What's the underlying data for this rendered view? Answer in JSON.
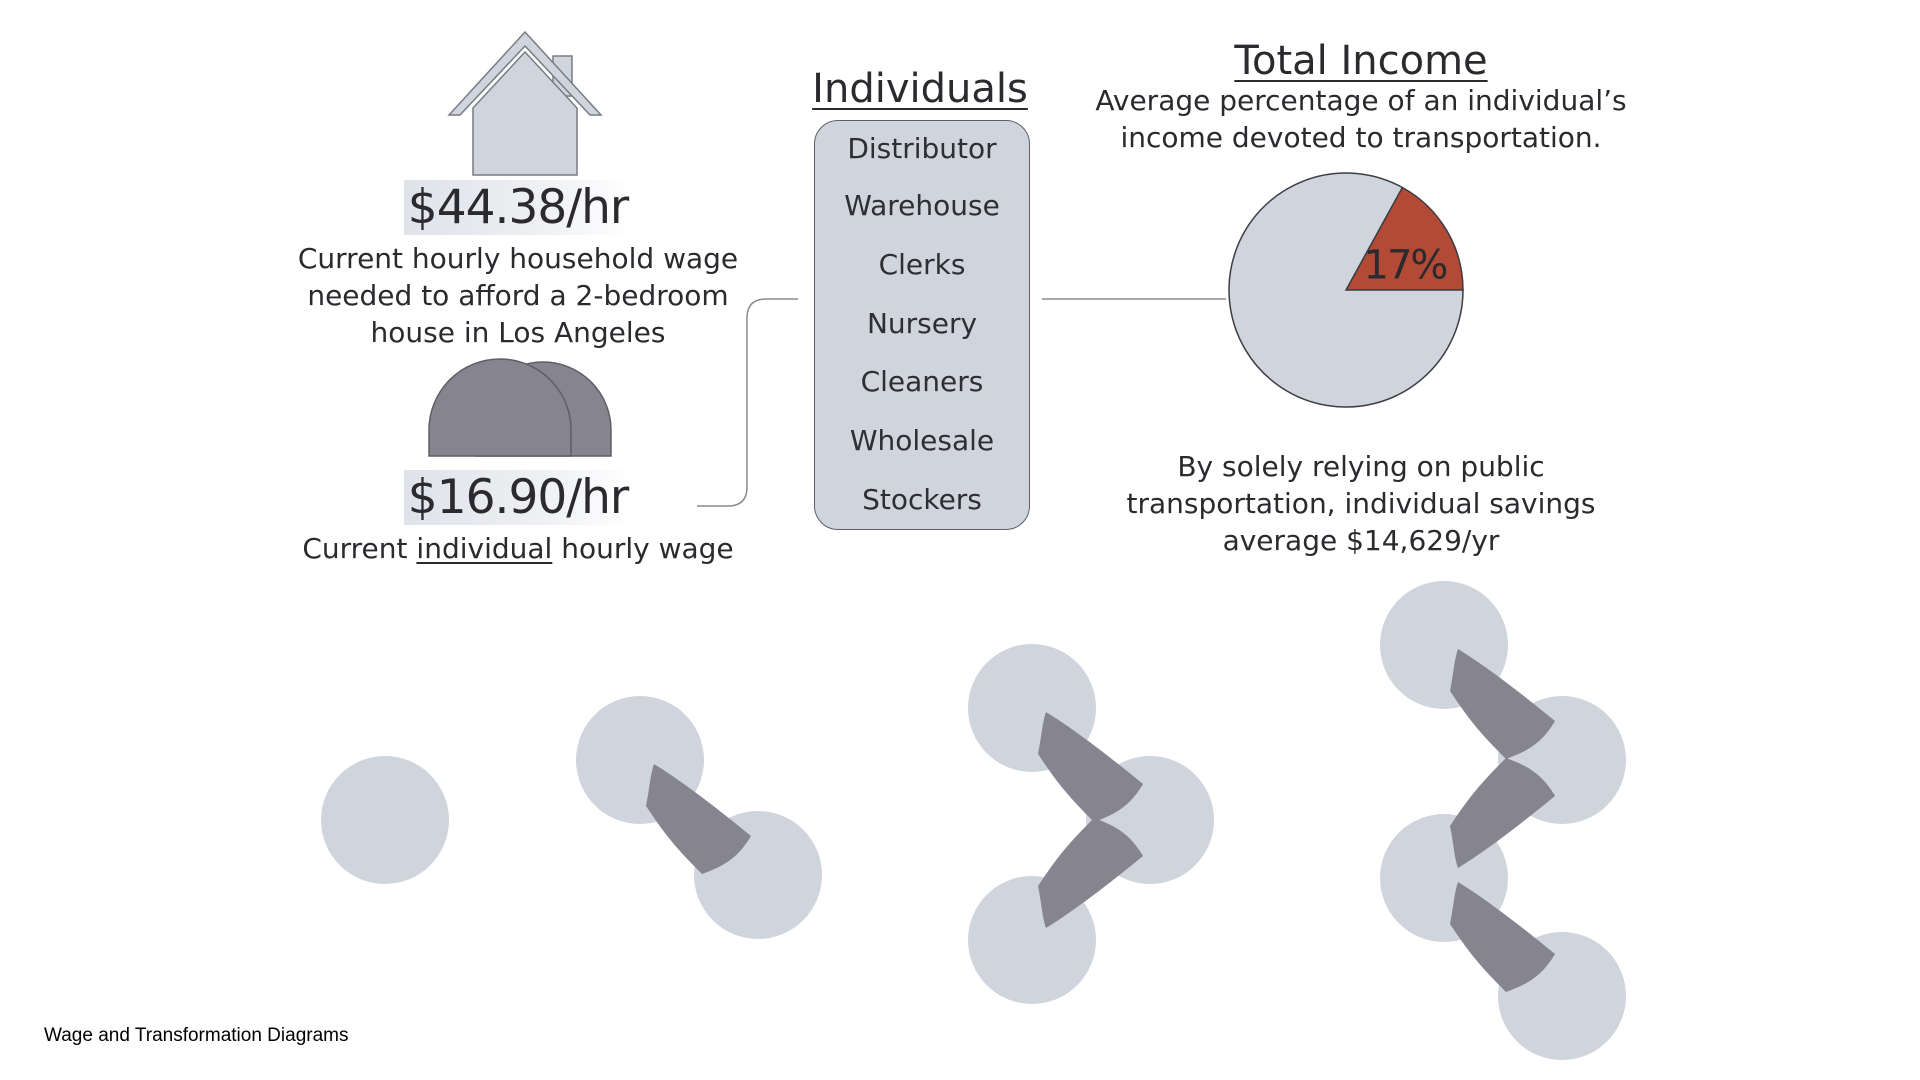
{
  "household": {
    "wage": "$44.38/hr",
    "caption_lines": [
      "Current hourly household wage",
      "needed to afford a 2-bedroom",
      "house in Los Angeles"
    ]
  },
  "individual": {
    "wage": "$16.90/hr",
    "caption_prefix": "Current ",
    "caption_underlined": "individual",
    "caption_suffix": " hourly wage"
  },
  "individuals": {
    "title": "Individuals",
    "items": [
      "Distributor",
      "Warehouse",
      "Clerks",
      "Nursery",
      "Cleaners",
      "Wholesale",
      "Stockers"
    ]
  },
  "total_income": {
    "title": "Total Income",
    "subtitle_lines": [
      "Average percentage of an individual’s",
      "income devoted to transportation."
    ],
    "pie_label": "17%",
    "savings_lines": [
      "By solely relying on public",
      "transportation, individual savings",
      "average $14,629/yr"
    ]
  },
  "chart_data": {
    "type": "pie",
    "values": [
      17,
      83
    ],
    "labels": [
      "17%",
      ""
    ]
  },
  "footer": {
    "caption": "Wage and Transformation Diagrams"
  },
  "colors": {
    "light_gray": "#d0d4dc",
    "dark_gray": "#85848f",
    "accent_red": "#b24a35",
    "outline": "#5d5f67"
  },
  "icons": {
    "house": "house-icon",
    "people": "people-silhouette-icon"
  }
}
